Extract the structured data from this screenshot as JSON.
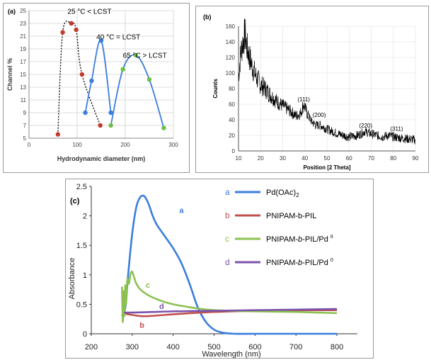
{
  "chart_data": [
    {
      "panel_label": "(a)",
      "type": "line",
      "xlabel": "Hydrodynamic diameter (nm)",
      "ylabel": "Channel %",
      "xlim": [
        0,
        300
      ],
      "ylim": [
        5,
        25
      ],
      "xticks": [
        0,
        100,
        200,
        300
      ],
      "yticks": [
        5,
        7,
        9,
        11,
        13,
        15,
        17,
        19,
        21,
        23,
        25
      ],
      "grid": true,
      "series": [
        {
          "name": "25 °C < LCST",
          "color": "#c0392b",
          "dash": true,
          "x": [
            60,
            70,
            88,
            98,
            110,
            148
          ],
          "y": [
            5.6,
            21.6,
            23.0,
            22.0,
            15.0,
            7.0
          ]
        },
        {
          "name": "40 °C = LCST",
          "color": "#3b7ddd",
          "dash": false,
          "x": [
            117,
            130,
            150,
            170
          ],
          "y": [
            9.0,
            14.0,
            20.3,
            9.0
          ]
        },
        {
          "name": "65 °C > LCST",
          "color": "#6ec046",
          "dash": false,
          "x": [
            170,
            195,
            222,
            250,
            280
          ],
          "y": [
            7.0,
            15.8,
            18.0,
            14.2,
            6.6
          ]
        }
      ],
      "series_line_color": "#3b7ddd",
      "marker_colors": [
        "#c0392b",
        "#3b7ddd",
        "#6ec046"
      ],
      "labels": [
        "25 °C < LCST",
        "40 °C = LCST",
        "65 °C > LCST"
      ]
    },
    {
      "panel_label": "(b)",
      "type": "line",
      "xlabel": "Position [2 Theta]",
      "ylabel": "Counts",
      "xlim": [
        10,
        90
      ],
      "ylim": [
        0,
        160
      ],
      "xticks": [
        10,
        20,
        30,
        40,
        50,
        60,
        70,
        80,
        90
      ],
      "yticks": [
        0,
        20,
        40,
        60,
        80,
        100,
        120,
        140,
        160
      ],
      "grid": true,
      "series": [
        {
          "name": "XRD",
          "color": "#000000",
          "x": [
            10,
            11,
            12,
            13,
            14,
            16,
            18,
            20,
            22,
            25,
            28,
            30,
            33,
            36,
            38,
            39.5,
            41,
            43,
            45,
            47,
            50,
            55,
            60,
            64,
            67,
            70,
            75,
            78,
            80,
            85,
            90
          ],
          "y": [
            95,
            125,
            140,
            150,
            130,
            110,
            95,
            85,
            80,
            70,
            62,
            58,
            52,
            45,
            48,
            60,
            48,
            38,
            33,
            33,
            28,
            22,
            18,
            20,
            25,
            22,
            18,
            20,
            18,
            16,
            14
          ]
        }
      ],
      "peak_labels": [
        {
          "text": "(111)",
          "x": 39.5,
          "y": 62
        },
        {
          "text": "(200)",
          "x": 46.5,
          "y": 42
        },
        {
          "text": "(220)",
          "x": 67.5,
          "y": 28
        },
        {
          "text": "(311)",
          "x": 81.5,
          "y": 24
        }
      ]
    },
    {
      "panel_label": "(c)",
      "type": "line",
      "xlabel": "Wavelength (nm)",
      "ylabel": "Absorbance",
      "xlim": [
        200,
        850
      ],
      "ylim": [
        0,
        2.5
      ],
      "xticks": [
        200,
        300,
        400,
        500,
        600,
        700,
        800
      ],
      "yticks": [
        0,
        0.5,
        1,
        1.5,
        2,
        2.5
      ],
      "ytick_labels": [
        "0",
        "0.5",
        "1",
        "1.5",
        "2",
        "2.5"
      ],
      "grid": false,
      "series": [
        {
          "name": "Pd(OAc)2",
          "letter": "a",
          "color": "#3b7ddd",
          "x": [
            280,
            285,
            290,
            300,
            310,
            320,
            330,
            340,
            350,
            360,
            380,
            400,
            420,
            440,
            460,
            480,
            500,
            520,
            550,
            600,
            700,
            800
          ],
          "y": [
            0.32,
            0.55,
            1.0,
            1.7,
            2.15,
            2.32,
            2.33,
            2.2,
            2.0,
            1.85,
            1.65,
            1.45,
            1.2,
            0.85,
            0.45,
            0.2,
            0.07,
            0.02,
            0.0,
            0.0,
            0.0,
            0.0
          ]
        },
        {
          "name": "PNIPAM-b-PIL",
          "letter": "b",
          "color": "#c0504d",
          "x": [
            275,
            280,
            285,
            290,
            300,
            320,
            340,
            380,
            420,
            500,
            600,
            700,
            800
          ],
          "y": [
            0.3,
            0.37,
            0.34,
            0.33,
            0.32,
            0.3,
            0.3,
            0.32,
            0.34,
            0.37,
            0.39,
            0.4,
            0.4
          ]
        },
        {
          "name": "PNIPAM-b-PIL/Pd II",
          "letter": "c",
          "color": "#8cc152",
          "x": [
            275,
            277,
            279,
            281,
            283,
            285,
            288,
            292,
            296,
            300,
            305,
            310,
            320,
            340,
            370,
            400,
            450,
            500,
            600,
            700,
            800
          ],
          "y": [
            0.8,
            0.2,
            0.72,
            0.3,
            0.82,
            0.5,
            0.92,
            0.85,
            1.02,
            1.05,
            0.95,
            0.85,
            0.75,
            0.65,
            0.56,
            0.5,
            0.44,
            0.4,
            0.38,
            0.37,
            0.35
          ]
        },
        {
          "name": "PNIPAM-b-PIL/Pd 0",
          "letter": "d",
          "color": "#7b52ab",
          "x": [
            280,
            290,
            300,
            350,
            400,
            500,
            600,
            700,
            800
          ],
          "y": [
            0.36,
            0.36,
            0.36,
            0.37,
            0.38,
            0.39,
            0.4,
            0.41,
            0.42
          ]
        }
      ],
      "legend": [
        {
          "letter": "a",
          "main": "Pd(OAc)",
          "sub": "2",
          "sup": ""
        },
        {
          "letter": "b",
          "main": "PNIPAM-b-PIL",
          "sub": "",
          "sup": ""
        },
        {
          "letter": "c",
          "main": "PNIPAM-",
          "italic": "b",
          "rest": "-PIL/Pd",
          "sup": "II"
        },
        {
          "letter": "d",
          "main": "PNIPAM-",
          "italic": "b",
          "rest": "-PIL/Pd",
          "sup": "0"
        }
      ],
      "curve_labels": [
        {
          "letter": "a",
          "x": 415,
          "y": 2.05
        },
        {
          "letter": "b",
          "x": 318,
          "y": 0.1
        },
        {
          "letter": "c",
          "x": 333,
          "y": 0.78
        },
        {
          "letter": "d",
          "x": 366,
          "y": 0.42
        }
      ]
    }
  ]
}
